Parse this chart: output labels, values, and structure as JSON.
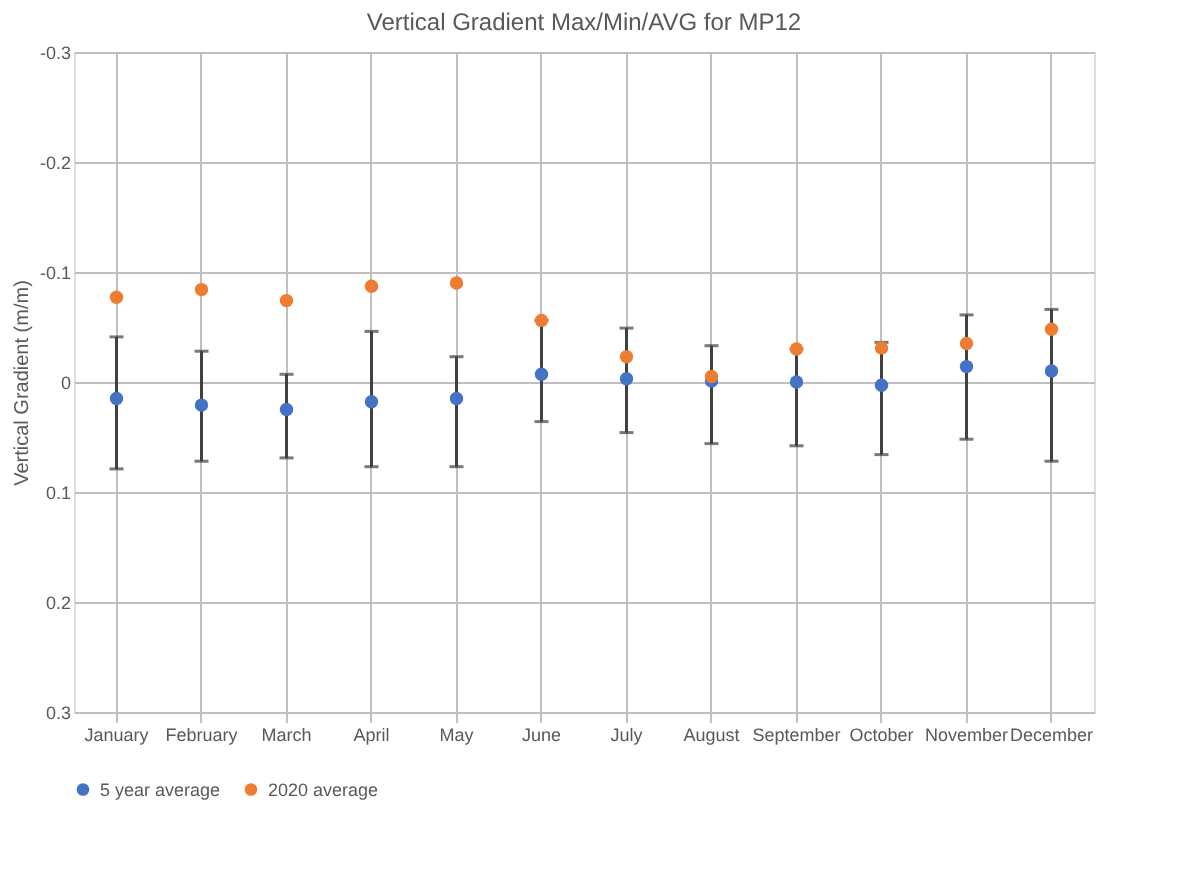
{
  "chart_data": {
    "type": "scatter",
    "title": "Vertical Gradient Max/Min/AVG for MP12",
    "ylabel": "Vertical Gradient (m/m)",
    "categories": [
      "January",
      "February",
      "March",
      "April",
      "May",
      "June",
      "July",
      "August",
      "September",
      "October",
      "November",
      "December"
    ],
    "series": [
      {
        "name": "5 year average",
        "color": "#4472c4",
        "values": [
          0.015,
          0.021,
          0.025,
          0.018,
          0.015,
          -0.007,
          -0.003,
          -0.001,
          0.0,
          0.003,
          -0.014,
          -0.01
        ],
        "errors": [
          [
            -0.041,
            0.079
          ],
          [
            -0.028,
            0.072
          ],
          [
            -0.007,
            0.069
          ],
          [
            -0.046,
            0.077
          ],
          [
            -0.023,
            0.077
          ],
          [
            -0.056,
            0.036
          ],
          [
            -0.049,
            0.046
          ],
          [
            -0.033,
            0.056
          ],
          [
            -0.03,
            0.058
          ],
          [
            -0.036,
            0.066
          ],
          [
            -0.061,
            0.052
          ],
          [
            -0.066,
            0.072
          ]
        ]
      },
      {
        "name": "2020 average",
        "color": "#ed7d31",
        "values": [
          -0.077,
          -0.084,
          -0.074,
          -0.087,
          -0.09,
          -0.056,
          -0.023,
          -0.005,
          -0.03,
          -0.031,
          -0.035,
          -0.048
        ]
      }
    ],
    "ylim": [
      0.3,
      -0.3
    ],
    "yticks": [
      -0.3,
      -0.2,
      -0.1,
      0,
      0.1,
      0.2,
      0.3
    ],
    "grid": true,
    "legend": "bottom",
    "marker": "circle"
  }
}
